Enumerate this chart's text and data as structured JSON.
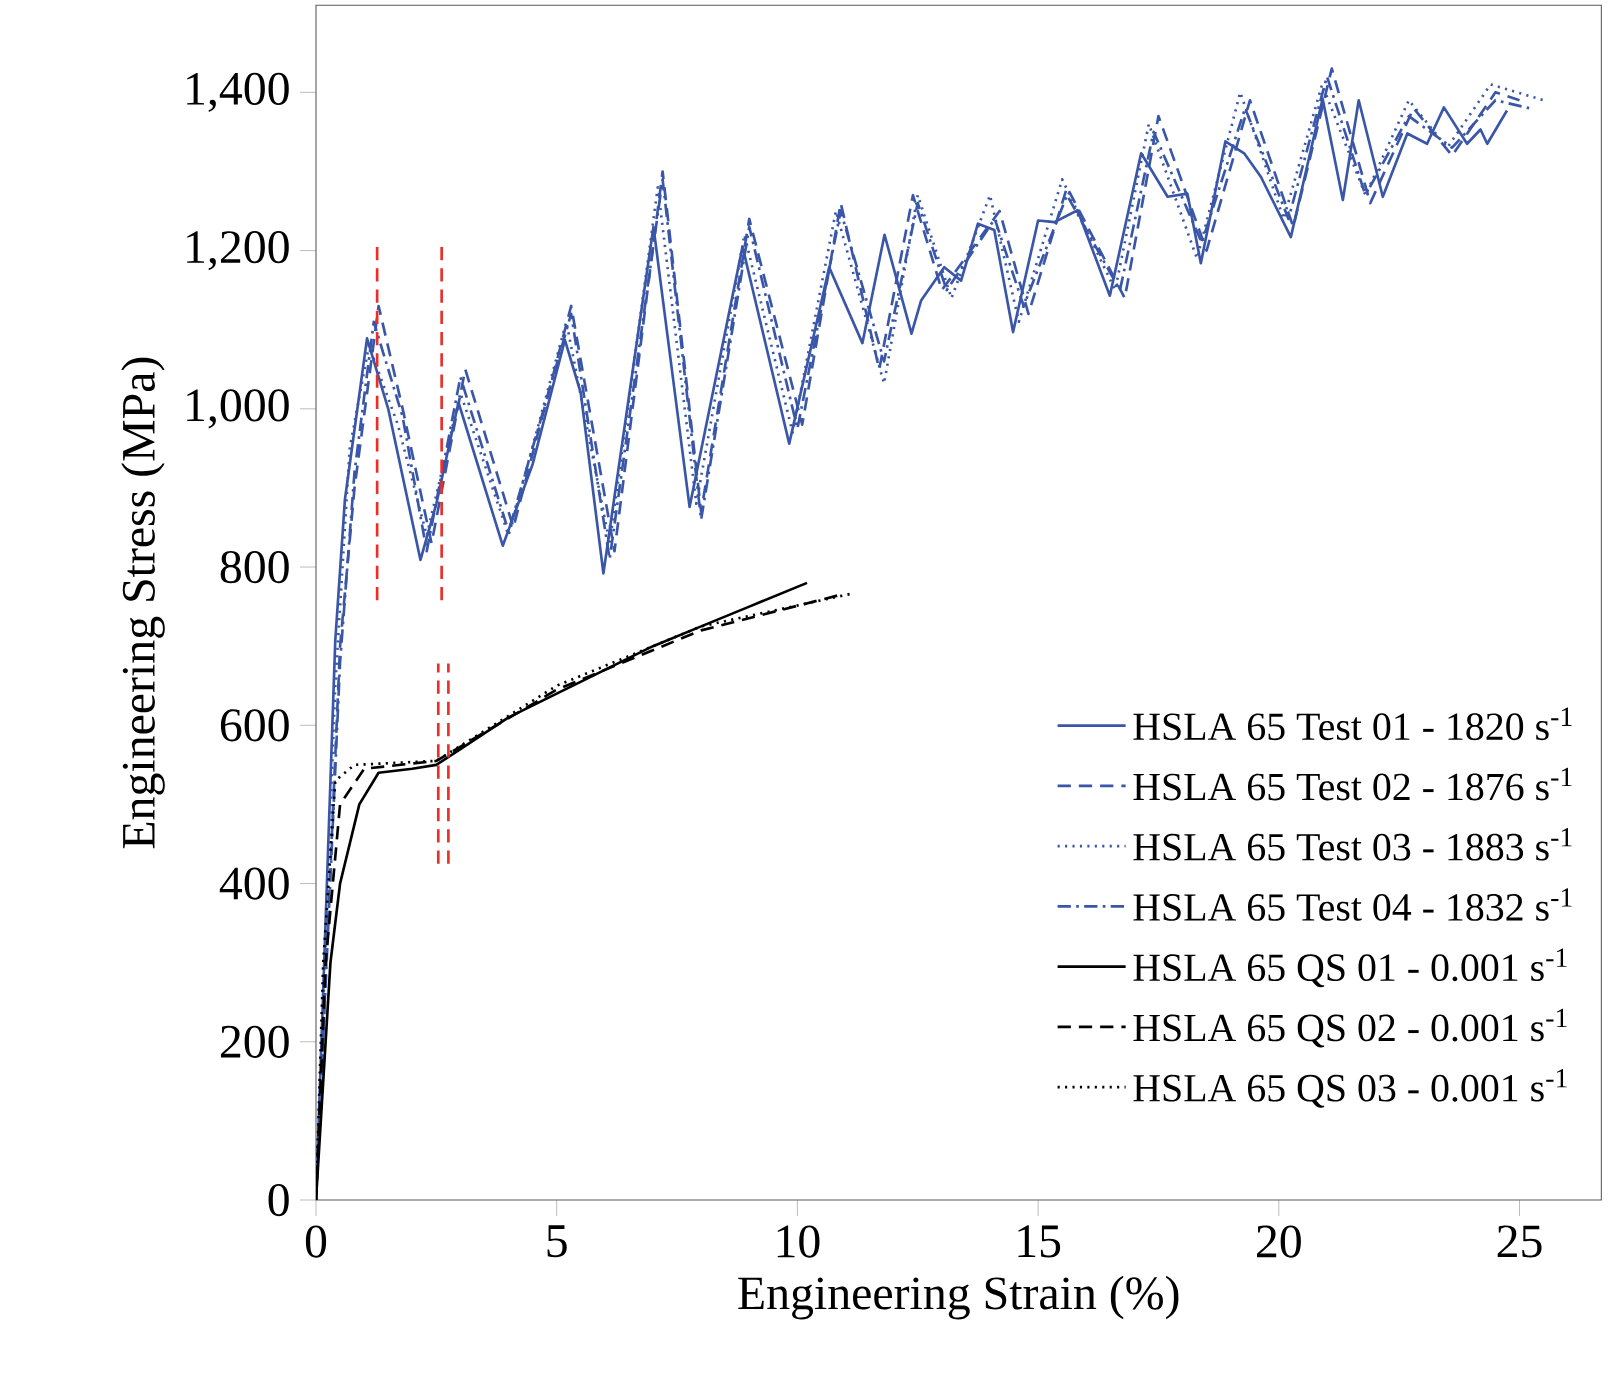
{
  "chart_data": {
    "type": "line",
    "xlabel": "Engineering Strain (%)",
    "ylabel": "Engineering Stress (MPa)",
    "xlim": [
      0,
      26.7
    ],
    "ylim": [
      0,
      1510
    ],
    "xticks": [
      0,
      5,
      10,
      15,
      20,
      25
    ],
    "yticks": [
      0,
      200,
      400,
      600,
      800,
      {
        "value": 1000,
        "label": "1,000"
      },
      {
        "value": 1200,
        "label": "1,200"
      },
      {
        "value": 1400,
        "label": "1,400"
      }
    ],
    "legend": "bottom right",
    "marker": "none",
    "series": [
      {
        "name": "HSLA 65 Test 01 - 1820 s$^{-1}$",
        "color": "#3a56a8",
        "line_style": "solid",
        "x": [
          0,
          0.4,
          0.6,
          1.06,
          1.5,
          2.17,
          2.5,
          2.96,
          3.88,
          4.5,
          5.17,
          5.5,
          5.97,
          7.01,
          7.76,
          8.86,
          9.83,
          10.66,
          11.35,
          11.81,
          12.37,
          12.57,
          13.05,
          13.4,
          13.75,
          14.09,
          14.48,
          15.0,
          15.34,
          15.82,
          16.49,
          17.14,
          17.69,
          18.1,
          18.38,
          18.89,
          19.28,
          19.63,
          20.25,
          20.91,
          21.33,
          21.66,
          22.16,
          22.67,
          23.08,
          23.43,
          23.91,
          24.19,
          24.33,
          24.74
        ],
        "values": [
          0,
          707,
          885,
          1089,
          1000,
          809,
          880,
          1008,
          827,
          930,
          1087,
          1020,
          792,
          1230,
          876,
          1205,
          956,
          1179,
          1083,
          1220,
          1095,
          1137,
          1179,
          1162,
          1234,
          1226,
          1097,
          1238,
          1236,
          1251,
          1143,
          1323,
          1268,
          1272,
          1184,
          1338,
          1323,
          1293,
          1217,
          1392,
          1264,
          1390,
          1268,
          1348,
          1335,
          1381,
          1335,
          1353,
          1335,
          1377
        ]
      },
      {
        "name": "HSLA 65 Test 02 - 1876 s$^{-1}$",
        "color": "#3a56a8",
        "line_style": "dashed",
        "x": [
          0,
          0.5,
          0.8,
          1.3,
          1.8,
          2.4,
          3.1,
          4.1,
          5.3,
          6.2,
          7.2,
          8.0,
          9.0,
          10.1,
          10.9,
          11.7,
          12.4,
          13.0,
          14.2,
          14.8,
          15.6,
          16.8,
          17.5,
          18.5,
          19.4,
          20.3,
          21.1,
          21.9,
          22.8,
          23.6,
          24.5,
          25.0
        ],
        "values": [
          0,
          700,
          900,
          1130,
          1000,
          830,
          1050,
          850,
          1130,
          820,
          1300,
          870,
          1240,
          980,
          1260,
          1050,
          1270,
          1150,
          1250,
          1120,
          1280,
          1140,
          1370,
          1200,
          1390,
          1230,
          1430,
          1260,
          1380,
          1320,
          1400,
          1390
        ]
      },
      {
        "name": "HSLA 65 Test 03 - 1883 s$^{-1}$",
        "color": "#3a56a8",
        "line_style": "dotted",
        "x": [
          0,
          0.4,
          0.7,
          1.1,
          1.7,
          2.3,
          3.0,
          4.0,
          5.2,
          6.1,
          7.1,
          7.9,
          8.9,
          9.9,
          10.8,
          11.8,
          12.5,
          13.2,
          14.0,
          14.6,
          15.5,
          16.6,
          17.3,
          18.3,
          19.2,
          20.1,
          20.9,
          21.8,
          22.7,
          23.5,
          24.4,
          25.5
        ],
        "values": [
          0,
          650,
          950,
          1080,
          980,
          840,
          1020,
          840,
          1110,
          830,
          1280,
          880,
          1220,
          970,
          1250,
          1032,
          1270,
          1140,
          1270,
          1110,
          1290,
          1150,
          1360,
          1190,
          1400,
          1240,
          1410,
          1270,
          1390,
          1330,
          1410,
          1390
        ]
      },
      {
        "name": "HSLA 65 Test 04 - 1832 s$^{-1}$",
        "color": "#3a56a8",
        "line_style": "dashdot",
        "x": [
          0,
          0.5,
          0.8,
          1.2,
          1.8,
          2.3,
          3.0,
          4.0,
          5.3,
          6.1,
          7.2,
          8.0,
          9.0,
          10.0,
          10.9,
          11.8,
          12.5,
          13.1,
          14.1,
          14.7,
          15.6,
          16.7,
          17.4,
          18.4,
          19.3,
          20.2,
          21.0,
          21.8,
          22.7,
          23.6,
          24.5,
          25.2
        ],
        "values": [
          0,
          680,
          920,
          1110,
          990,
          820,
          1040,
          845,
          1120,
          810,
          1290,
          860,
          1230,
          975,
          1250,
          1060,
          1260,
          1150,
          1240,
          1130,
          1270,
          1150,
          1350,
          1210,
          1380,
          1240,
          1420,
          1270,
          1370,
          1330,
          1390,
          1380
        ]
      },
      {
        "name": "HSLA 65 QS 01 - 0.001 s$^{-1}$",
        "color": "#000000",
        "line_style": "solid",
        "x": [
          0,
          0.3,
          0.5,
          0.9,
          1.3,
          2.0,
          2.5,
          3.0,
          4.0,
          5.0,
          6.0,
          7.0,
          8.0,
          9.0,
          10.2
        ],
        "values": [
          0,
          300,
          400,
          500,
          540,
          545,
          550,
          570,
          610,
          640,
          670,
          700,
          725,
          750,
          780
        ]
      },
      {
        "name": "HSLA 65 QS 02 - 0.001 s$^{-1}$",
        "color": "#000000",
        "line_style": "dashed",
        "x": [
          0,
          0.2,
          0.5,
          1.0,
          2.5,
          5.0,
          8.0,
          10.9
        ],
        "values": [
          0,
          300,
          500,
          545,
          555,
          645,
          720,
          765
        ]
      },
      {
        "name": "HSLA 65 QS 03 - 0.001 s$^{-1}$",
        "color": "#000000",
        "line_style": "dotted",
        "x": [
          0,
          0.15,
          0.4,
          0.8,
          2.5,
          5.0,
          8.0,
          11.1
        ],
        "values": [
          0,
          300,
          530,
          550,
          555,
          650,
          725,
          766
        ]
      },
      {
        "color": "#e8302a",
        "line_style": "dashed",
        "x": [
          1.27,
          1.27
        ],
        "values": [
          758,
          1209
        ]
      },
      {
        "color": "#e8302a",
        "line_style": "dashed",
        "x": [
          2.61,
          2.61
        ],
        "values": [
          758,
          1209
        ]
      },
      {
        "color": "#e8302a",
        "line_style": "dashed",
        "x": [
          2.54,
          2.54
        ],
        "values": [
          425,
          678
        ]
      },
      {
        "color": "#e8302a",
        "line_style": "dashed",
        "x": [
          2.75,
          2.75
        ],
        "values": [
          425,
          678
        ]
      }
    ]
  }
}
